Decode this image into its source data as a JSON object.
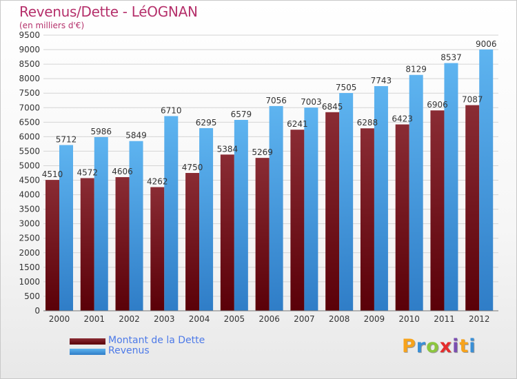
{
  "title": "Revenus/Dette - LéOGNAN",
  "subtitle": "(en milliers d'€)",
  "logo": {
    "text": "Proxiti",
    "letter_colors": [
      "#f7a31c",
      "#3a8fd6",
      "#8cc63e",
      "#e52d2d",
      "#7b4fb0",
      "#f7a31c",
      "#3a8fd6"
    ]
  },
  "colors": {
    "dette_dark": "#5a0008",
    "dette_light": "#8a2c34",
    "revenus_dark": "#2f7dc7",
    "revenus_light": "#5eb4f0",
    "title": "#b5306b",
    "legend_text": "#4d7ae8"
  },
  "chart_data": {
    "type": "bar",
    "title": "Revenus/Dette - LéOGNAN",
    "subtitle": "(en milliers d'€)",
    "categories": [
      "2000",
      "2001",
      "2002",
      "2003",
      "2004",
      "2005",
      "2006",
      "2007",
      "2008",
      "2009",
      "2010",
      "2011",
      "2012"
    ],
    "series": [
      {
        "name": "Montant de la Dette",
        "values": [
          4510,
          4572,
          4606,
          4262,
          4750,
          5384,
          5269,
          6241,
          6845,
          6288,
          6423,
          6906,
          7087
        ]
      },
      {
        "name": "Revenus",
        "values": [
          5712,
          5986,
          5849,
          6710,
          6295,
          6579,
          7056,
          7003,
          7505,
          7743,
          8129,
          8537,
          9006
        ]
      }
    ],
    "ylim": [
      0,
      9500
    ],
    "yticks": [
      "0",
      "500",
      "1000",
      "1500",
      "2000",
      "2500",
      "3000",
      "3500",
      "4000",
      "4500",
      "5000",
      "5500",
      "6000",
      "6500",
      "7000",
      "7500",
      "8000",
      "8500",
      "9000",
      "9500"
    ],
    "grid": true,
    "legend_position": "bottom-left"
  }
}
